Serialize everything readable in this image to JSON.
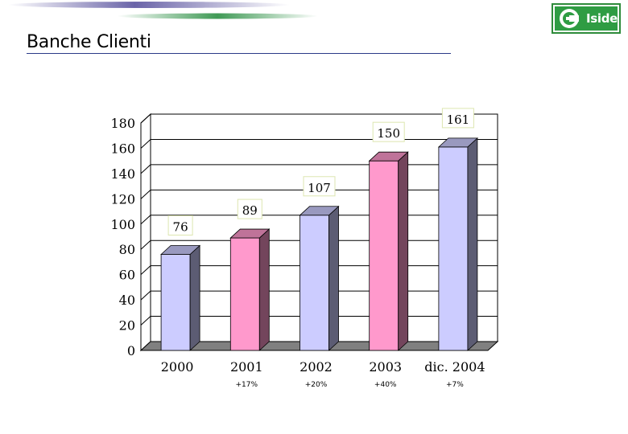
{
  "slide": {
    "title": "Banche Clienti"
  },
  "logo": {
    "text": "Iside",
    "icon": "iside-logo-icon"
  },
  "colors": {
    "lavender": "#ccccff",
    "pink": "#ff99cc",
    "rule": "#2b3a88",
    "logo_green": "#2f9c43"
  },
  "chart_data": {
    "type": "bar",
    "title": "",
    "xlabel": "",
    "ylabel": "",
    "categories": [
      "2000",
      "2001",
      "2002",
      "2003",
      "dic. 2004"
    ],
    "values": [
      76,
      89,
      107,
      150,
      161
    ],
    "data_labels": [
      "76",
      "89",
      "107",
      "150",
      "161"
    ],
    "growth_labels": [
      "",
      "+17%",
      "+20%",
      "+40%",
      "+7%"
    ],
    "bar_colors": [
      "#ccccff",
      "#ff99cc",
      "#ccccff",
      "#ff99cc",
      "#ccccff"
    ],
    "ylim": [
      0,
      180
    ],
    "yticks": [
      0,
      20,
      40,
      60,
      80,
      100,
      120,
      140,
      160,
      180
    ],
    "grid": true,
    "style": "3d"
  }
}
